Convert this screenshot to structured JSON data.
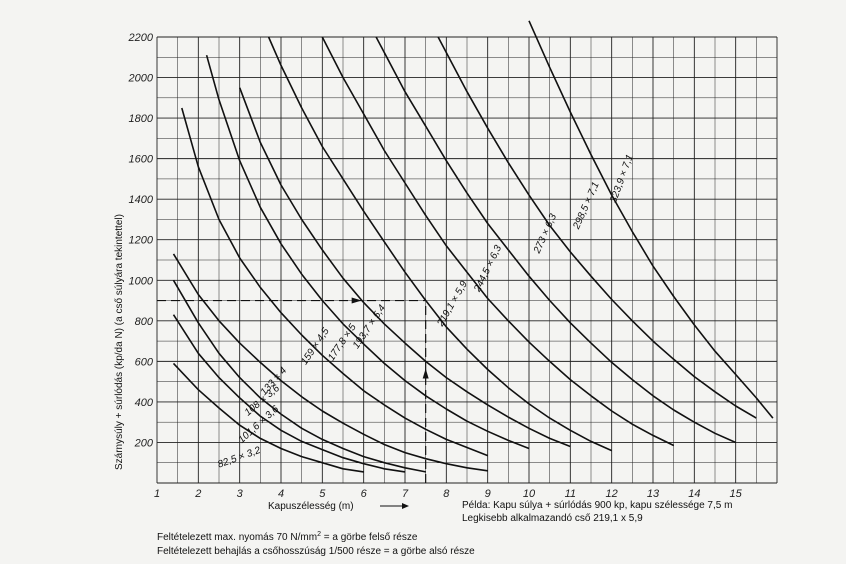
{
  "chart_data": {
    "type": "line",
    "xlabel": "Kapuszélesség (m)",
    "ylabel": "Szárnysúly + súrlódás (kp/da N) (a cső súlyára tekintettel)",
    "xlim": [
      1,
      16
    ],
    "ylim": [
      0,
      2200
    ],
    "x_ticks": [
      "1",
      "2",
      "3",
      "4",
      "5",
      "6",
      "7",
      "8",
      "9",
      "10",
      "11",
      "12",
      "13",
      "14",
      "15"
    ],
    "y_ticks": [
      "200",
      "400",
      "600",
      "800",
      "1000",
      "1200",
      "1400",
      "1600",
      "1800",
      "2000",
      "2200"
    ],
    "grid": true,
    "series": [
      {
        "name": "82,5 × 3,2",
        "label_pos": [
          2.5,
          75
        ],
        "label_rot": 20,
        "points": [
          [
            1.4,
            590
          ],
          [
            2.0,
            460
          ],
          [
            2.5,
            370
          ],
          [
            3.0,
            285
          ],
          [
            3.5,
            220
          ],
          [
            4.0,
            170
          ],
          [
            4.5,
            130
          ],
          [
            5.0,
            100
          ],
          [
            5.5,
            70
          ],
          [
            6.0,
            55
          ]
        ]
      },
      {
        "name": "101,6 × 3,6",
        "label_pos": [
          3.05,
          195
        ],
        "label_rot": 42,
        "points": [
          [
            1.4,
            830
          ],
          [
            2.0,
            640
          ],
          [
            2.5,
            520
          ],
          [
            3.0,
            420
          ],
          [
            3.5,
            330
          ],
          [
            4.0,
            260
          ],
          [
            4.5,
            205
          ],
          [
            5.0,
            165
          ],
          [
            5.5,
            125
          ],
          [
            6.0,
            95
          ],
          [
            6.5,
            70
          ],
          [
            7.0,
            55
          ]
        ]
      },
      {
        "name": "108 × 3,6",
        "label_pos": [
          3.2,
          330
        ],
        "label_rot": 40,
        "points": [
          [
            1.4,
            1000
          ],
          [
            2.0,
            790
          ],
          [
            2.5,
            640
          ],
          [
            3.0,
            520
          ],
          [
            3.5,
            420
          ],
          [
            4.0,
            340
          ],
          [
            4.5,
            270
          ],
          [
            5.0,
            215
          ],
          [
            5.5,
            170
          ],
          [
            6.0,
            130
          ],
          [
            6.5,
            100
          ],
          [
            7.0,
            75
          ],
          [
            7.5,
            55
          ]
        ]
      },
      {
        "name": "133 × 4",
        "label_pos": [
          3.6,
          430
        ],
        "label_rot": 48,
        "points": [
          [
            1.4,
            1130
          ],
          [
            2.0,
            930
          ],
          [
            2.5,
            800
          ],
          [
            3.0,
            690
          ],
          [
            3.5,
            595
          ],
          [
            4.0,
            505
          ],
          [
            4.5,
            425
          ],
          [
            5.0,
            355
          ],
          [
            5.5,
            295
          ],
          [
            6.0,
            240
          ],
          [
            6.5,
            190
          ],
          [
            7.0,
            150
          ],
          [
            7.5,
            120
          ],
          [
            8.0,
            95
          ],
          [
            8.5,
            75
          ],
          [
            9.0,
            60
          ]
        ]
      },
      {
        "name": "159 × 4,5",
        "label_pos": [
          4.6,
          580
        ],
        "label_rot": 56,
        "points": [
          [
            1.6,
            1850
          ],
          [
            2.0,
            1560
          ],
          [
            2.5,
            1300
          ],
          [
            3.0,
            1110
          ],
          [
            3.5,
            965
          ],
          [
            4.0,
            840
          ],
          [
            4.5,
            730
          ],
          [
            5.0,
            630
          ],
          [
            5.5,
            540
          ],
          [
            6.0,
            455
          ],
          [
            6.5,
            385
          ],
          [
            7.0,
            320
          ],
          [
            7.5,
            265
          ],
          [
            8.0,
            215
          ],
          [
            8.5,
            175
          ],
          [
            9.0,
            135
          ]
        ]
      },
      {
        "name": "177,8 × 5",
        "label_pos": [
          5.25,
          600
        ],
        "label_rot": 56,
        "points": [
          [
            2.2,
            2110
          ],
          [
            2.5,
            1890
          ],
          [
            3.0,
            1590
          ],
          [
            3.5,
            1360
          ],
          [
            4.0,
            1180
          ],
          [
            4.5,
            1030
          ],
          [
            5.0,
            900
          ],
          [
            5.5,
            785
          ],
          [
            6.0,
            685
          ],
          [
            6.5,
            590
          ],
          [
            7.0,
            505
          ],
          [
            7.5,
            430
          ],
          [
            8.0,
            365
          ],
          [
            8.5,
            305
          ],
          [
            9.0,
            255
          ],
          [
            9.5,
            210
          ],
          [
            10.0,
            170
          ]
        ]
      },
      {
        "name": "193,7 × 5,4",
        "label_pos": [
          5.85,
          660
        ],
        "label_rot": 56,
        "points": [
          [
            3.0,
            1950
          ],
          [
            3.5,
            1680
          ],
          [
            4.0,
            1470
          ],
          [
            4.5,
            1300
          ],
          [
            5.0,
            1150
          ],
          [
            5.5,
            1010
          ],
          [
            6.0,
            890
          ],
          [
            6.5,
            785
          ],
          [
            7.0,
            690
          ],
          [
            7.5,
            600
          ],
          [
            8.0,
            520
          ],
          [
            8.5,
            450
          ],
          [
            9.0,
            385
          ],
          [
            9.5,
            325
          ],
          [
            10.0,
            270
          ],
          [
            10.5,
            220
          ],
          [
            11.0,
            180
          ]
        ]
      },
      {
        "name": "219,1 × 5,9",
        "label_pos": [
          7.9,
          770
        ],
        "label_rot": 60,
        "points": [
          [
            3.7,
            2200
          ],
          [
            4.0,
            2060
          ],
          [
            4.5,
            1850
          ],
          [
            5.0,
            1660
          ],
          [
            5.5,
            1500
          ],
          [
            6.0,
            1340
          ],
          [
            6.5,
            1190
          ],
          [
            7.0,
            1040
          ],
          [
            7.5,
            900
          ],
          [
            8.0,
            770
          ],
          [
            8.5,
            660
          ],
          [
            9.0,
            560
          ],
          [
            9.5,
            470
          ],
          [
            10.0,
            390
          ],
          [
            10.5,
            320
          ],
          [
            11.0,
            260
          ],
          [
            11.5,
            205
          ],
          [
            12.0,
            160
          ]
        ]
      },
      {
        "name": "244,5 × 6,3",
        "label_pos": [
          8.8,
          940
        ],
        "label_rot": 64,
        "points": [
          [
            5.0,
            2200
          ],
          [
            5.5,
            2000
          ],
          [
            6.0,
            1820
          ],
          [
            6.5,
            1640
          ],
          [
            7.0,
            1480
          ],
          [
            7.5,
            1320
          ],
          [
            8.0,
            1170
          ],
          [
            8.5,
            1040
          ],
          [
            9.0,
            910
          ],
          [
            9.5,
            800
          ],
          [
            10.0,
            695
          ],
          [
            10.5,
            600
          ],
          [
            11.0,
            510
          ],
          [
            11.5,
            430
          ],
          [
            12.0,
            355
          ],
          [
            12.5,
            290
          ],
          [
            13.0,
            235
          ],
          [
            13.5,
            185
          ]
        ]
      },
      {
        "name": "273 × 6,3",
        "label_pos": [
          10.25,
          1130
        ],
        "label_rot": 66,
        "points": [
          [
            6.3,
            2200
          ],
          [
            7.0,
            1930
          ],
          [
            7.5,
            1760
          ],
          [
            8.0,
            1590
          ],
          [
            8.5,
            1430
          ],
          [
            9.0,
            1280
          ],
          [
            9.5,
            1150
          ],
          [
            10.0,
            1020
          ],
          [
            10.5,
            900
          ],
          [
            11.0,
            790
          ],
          [
            11.5,
            690
          ],
          [
            12.0,
            595
          ],
          [
            12.5,
            510
          ],
          [
            13.0,
            430
          ],
          [
            13.5,
            360
          ],
          [
            14.0,
            300
          ],
          [
            14.5,
            245
          ],
          [
            15.0,
            200
          ]
        ]
      },
      {
        "name": "298,5 × 7,1",
        "label_pos": [
          11.2,
          1250
        ],
        "label_rot": 66,
        "points": [
          [
            7.8,
            2200
          ],
          [
            8.5,
            1930
          ],
          [
            9.0,
            1750
          ],
          [
            9.5,
            1580
          ],
          [
            10.0,
            1420
          ],
          [
            10.5,
            1270
          ],
          [
            11.0,
            1140
          ],
          [
            11.5,
            1020
          ],
          [
            12.0,
            905
          ],
          [
            12.5,
            800
          ],
          [
            13.0,
            700
          ],
          [
            13.5,
            610
          ],
          [
            14.0,
            525
          ],
          [
            14.5,
            450
          ],
          [
            15.0,
            380
          ],
          [
            15.5,
            320
          ]
        ]
      },
      {
        "name": "323,9 × 7,1",
        "label_pos": [
          12.1,
          1380
        ],
        "label_rot": 70,
        "points": [
          [
            10.0,
            2280
          ],
          [
            10.5,
            2050
          ],
          [
            11.0,
            1830
          ],
          [
            11.5,
            1620
          ],
          [
            12.0,
            1420
          ],
          [
            12.5,
            1240
          ],
          [
            13.0,
            1070
          ],
          [
            13.5,
            920
          ],
          [
            14.0,
            780
          ],
          [
            14.5,
            650
          ],
          [
            15.0,
            535
          ],
          [
            15.5,
            420
          ],
          [
            15.9,
            320
          ]
        ]
      }
    ],
    "example": {
      "x": 7.5,
      "y": 900
    },
    "annotations": {
      "example_line1": "Példa:  Kapu súlya + súrlódás 900 kp, kapu szélessége 7,5 m",
      "example_line2": "Legkisebb alkalmazandó cső 219,1 x 5,9",
      "note_line1_a": "Feltételezett max. nyomás 70 N/mm",
      "note_line1_sup": "2",
      "note_line1_b": " = a görbe felső része",
      "note_line2": "Feltételezett behajlás a csőhosszúság 1/500 része = a görbe alsó része"
    }
  }
}
